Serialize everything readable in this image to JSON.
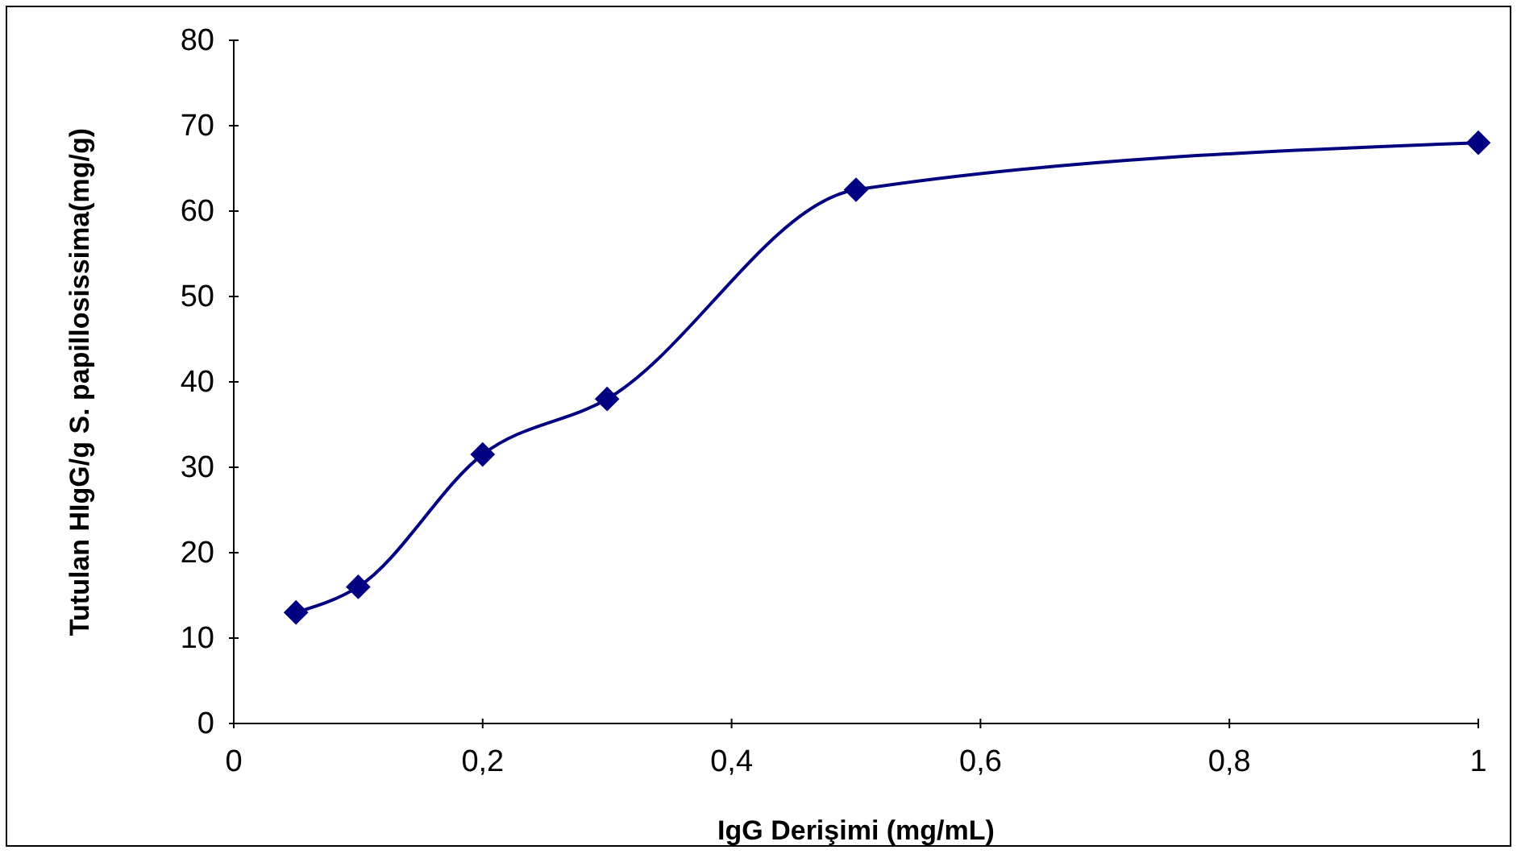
{
  "chart_data": {
    "type": "line",
    "xlabel": "IgG Derişimi (mg/mL)",
    "ylabel": "Tutulan HIgG/g S. papillosissima(mg/g)",
    "x": [
      0.05,
      0.1,
      0.2,
      0.3,
      0.5,
      1
    ],
    "series": [
      {
        "color": "#000080",
        "values": [
          13,
          16,
          31.5,
          38,
          62.5,
          68
        ]
      }
    ],
    "xlim": [
      0,
      1
    ],
    "ylim": [
      0,
      80
    ],
    "xticks": [
      0,
      {
        "value": 0.2,
        "label": "0,2"
      },
      {
        "value": 0.4,
        "label": "0,4"
      },
      {
        "value": 0.6,
        "label": "0,6"
      },
      {
        "value": 0.8,
        "label": "0,8"
      },
      1
    ],
    "yticks": [
      0,
      10,
      20,
      30,
      40,
      50,
      60,
      70,
      80
    ],
    "grid": false,
    "marker": "diamond",
    "line_style": "solid"
  }
}
